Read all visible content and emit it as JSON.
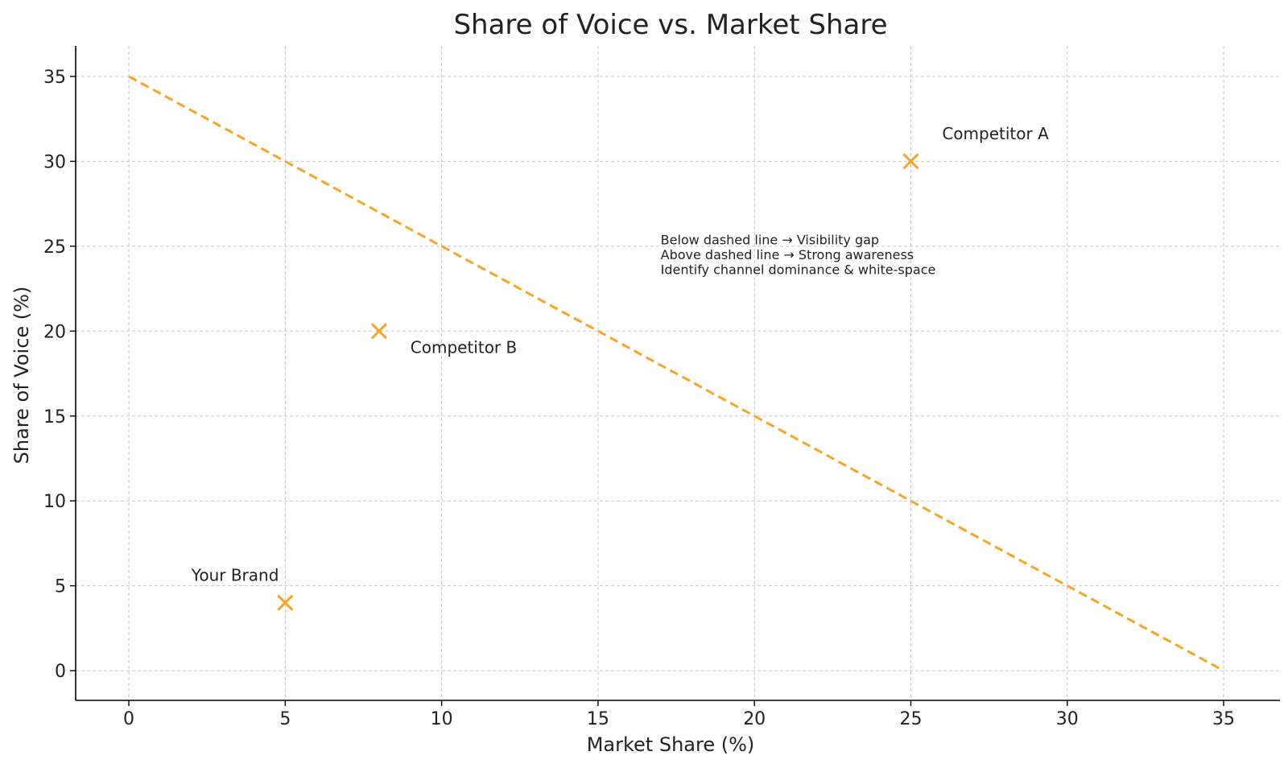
{
  "chart_data": {
    "type": "scatter",
    "title": "Share of Voice vs. Market Share",
    "xlabel": "Market Share (%)",
    "ylabel": "Share of Voice (%)",
    "xlim": [
      -1.7,
      36.8
    ],
    "ylim": [
      -1.75,
      36.8
    ],
    "xticks": [
      0,
      5,
      10,
      15,
      20,
      25,
      30,
      35
    ],
    "yticks": [
      0,
      5,
      10,
      15,
      20,
      25,
      30,
      35
    ],
    "grid": true,
    "marker": "x",
    "marker_color": "#f5a623",
    "points": [
      {
        "label": "Competitor A",
        "x": 25,
        "y": 30
      },
      {
        "label": "Competitor B",
        "x": 8,
        "y": 20
      },
      {
        "label": "Your Brand",
        "x": 5,
        "y": 4
      }
    ],
    "reference_line": {
      "style": "dashed",
      "color": "#f5a623",
      "x": [
        0,
        35
      ],
      "y": [
        35,
        0
      ]
    },
    "annotation_lines": [
      "Below dashed line → Visibility gap",
      "Above dashed line → Strong awareness",
      "Identify channel dominance & white-space"
    ],
    "annotation_anchor": {
      "x": 17,
      "y": 23.4
    }
  }
}
